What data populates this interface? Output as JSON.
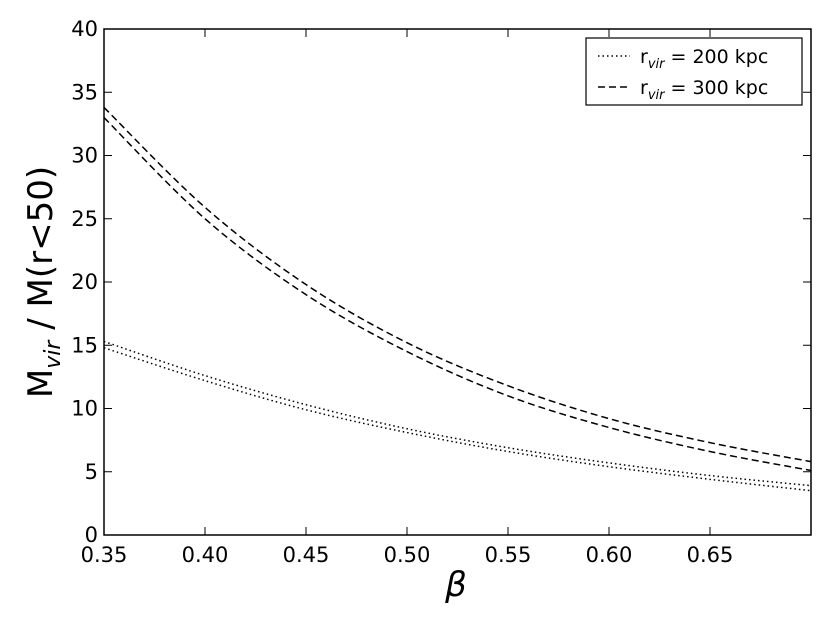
{
  "chart_data": {
    "type": "line",
    "x_label": "β",
    "y_label_main": "M",
    "y_label_sub": "vir",
    "y_label_rest": " / M(r<50)",
    "xlim": [
      0.35,
      0.7
    ],
    "ylim": [
      0,
      40
    ],
    "x_ticks": [
      "0.35",
      "0.40",
      "0.45",
      "0.50",
      "0.55",
      "0.60",
      "0.65"
    ],
    "y_ticks": [
      "0",
      "5",
      "10",
      "15",
      "20",
      "25",
      "30",
      "35",
      "40"
    ],
    "grid": false,
    "legend_position": "top-right",
    "legend": [
      {
        "prefix": "r",
        "sub": "vir",
        "suffix": " = 200 kpc",
        "style": "dotted"
      },
      {
        "prefix": "r",
        "sub": "vir",
        "suffix": " = 300 kpc",
        "style": "dashed"
      }
    ],
    "series": [
      {
        "group": "r_vir = 200 kpc",
        "style": "dotted",
        "x": [
          0.35,
          0.4,
          0.45,
          0.5,
          0.55,
          0.6,
          0.65,
          0.7
        ],
        "y": [
          15.3,
          12.6,
          10.3,
          8.4,
          6.9,
          5.7,
          4.7,
          3.9
        ]
      },
      {
        "group": "r_vir = 200 kpc",
        "style": "dotted",
        "x": [
          0.35,
          0.4,
          0.45,
          0.5,
          0.55,
          0.6,
          0.65,
          0.7
        ],
        "y": [
          14.8,
          12.2,
          9.9,
          8.1,
          6.6,
          5.4,
          4.4,
          3.5
        ]
      },
      {
        "group": "r_vir = 300 kpc",
        "style": "dashed",
        "x": [
          0.35,
          0.4,
          0.45,
          0.5,
          0.55,
          0.6,
          0.65,
          0.7
        ],
        "y": [
          33.8,
          25.9,
          19.8,
          15.2,
          11.8,
          9.2,
          7.3,
          5.8
        ]
      },
      {
        "group": "r_vir = 300 kpc",
        "style": "dashed",
        "x": [
          0.35,
          0.4,
          0.45,
          0.5,
          0.55,
          0.6,
          0.65,
          0.7
        ],
        "y": [
          33.0,
          25.0,
          19.0,
          14.5,
          11.0,
          8.5,
          6.6,
          5.1
        ]
      }
    ]
  }
}
